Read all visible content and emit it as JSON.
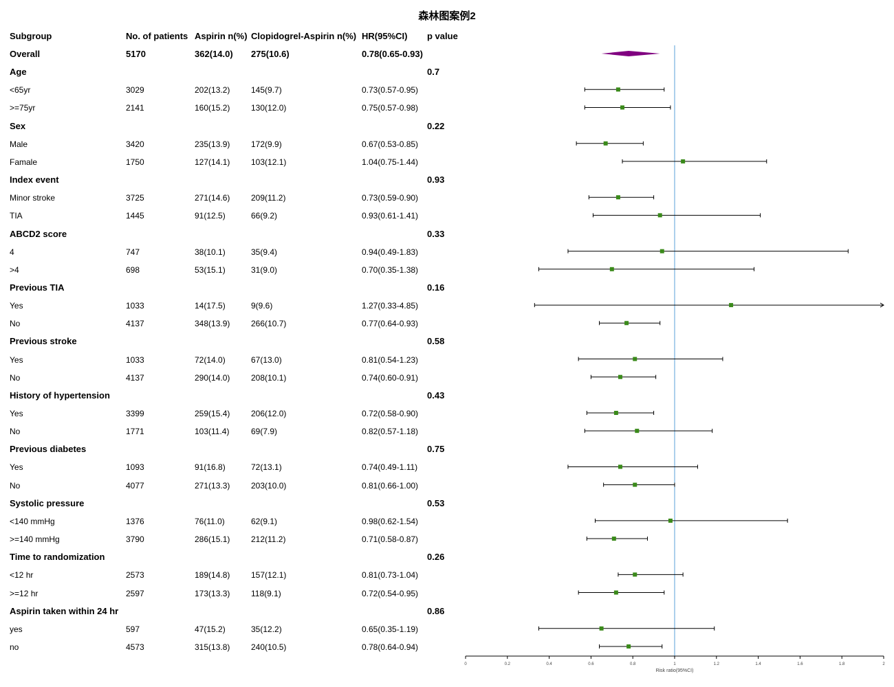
{
  "title": "森林图案例2",
  "headers": [
    "Subgroup",
    "No. of patients",
    "Aspirin n(%)",
    "Clopidogrel-Aspirin n(%)",
    "HR(95%CI)",
    "p value"
  ],
  "rows": [
    {
      "label": "Overall",
      "n": "5170",
      "asp": "362(14.0)",
      "clop": "275(10.6)",
      "hr": "0.78(0.65-0.93)",
      "p": "",
      "kind": "overall"
    },
    {
      "label": "Age",
      "n": "",
      "asp": "",
      "clop": "",
      "hr": "",
      "p": "0.7",
      "kind": "group"
    },
    {
      "label": "<65yr",
      "n": "3029",
      "asp": "202(13.2)",
      "clop": "145(9.7)",
      "hr": "0.73(0.57-0.95)",
      "p": "",
      "kind": "item"
    },
    {
      "label": ">=75yr",
      "n": "2141",
      "asp": "160(15.2)",
      "clop": "130(12.0)",
      "hr": "0.75(0.57-0.98)",
      "p": "",
      "kind": "item"
    },
    {
      "label": "Sex",
      "n": "",
      "asp": "",
      "clop": "",
      "hr": "",
      "p": "0.22",
      "kind": "group"
    },
    {
      "label": "Male",
      "n": "3420",
      "asp": "235(13.9)",
      "clop": "172(9.9)",
      "hr": "0.67(0.53-0.85)",
      "p": "",
      "kind": "item"
    },
    {
      "label": "Famale",
      "n": "1750",
      "asp": "127(14.1)",
      "clop": "103(12.1)",
      "hr": "1.04(0.75-1.44)",
      "p": "",
      "kind": "item"
    },
    {
      "label": "Index event",
      "n": "",
      "asp": "",
      "clop": "",
      "hr": "",
      "p": "0.93",
      "kind": "group"
    },
    {
      "label": "Minor stroke",
      "n": "3725",
      "asp": "271(14.6)",
      "clop": "209(11.2)",
      "hr": "0.73(0.59-0.90)",
      "p": "",
      "kind": "item"
    },
    {
      "label": "TIA",
      "n": "1445",
      "asp": "91(12.5)",
      "clop": "66(9.2)",
      "hr": "0.93(0.61-1.41)",
      "p": "",
      "kind": "item"
    },
    {
      "label": "ABCD2 score",
      "n": "",
      "asp": "",
      "clop": "",
      "hr": "",
      "p": "0.33",
      "kind": "group"
    },
    {
      "label": "4",
      "n": "747",
      "asp": "38(10.1)",
      "clop": "35(9.4)",
      "hr": "0.94(0.49-1.83)",
      "p": "",
      "kind": "item"
    },
    {
      "label": ">4",
      "n": "698",
      "asp": "53(15.1)",
      "clop": "31(9.0)",
      "hr": "0.70(0.35-1.38)",
      "p": "",
      "kind": "item"
    },
    {
      "label": "Previous TIA",
      "n": "",
      "asp": "",
      "clop": "",
      "hr": "",
      "p": "0.16",
      "kind": "group"
    },
    {
      "label": "Yes",
      "n": "1033",
      "asp": "14(17.5)",
      "clop": "9(9.6)",
      "hr": "1.27(0.33-4.85)",
      "p": "",
      "kind": "item"
    },
    {
      "label": "No",
      "n": "4137",
      "asp": "348(13.9)",
      "clop": "266(10.7)",
      "hr": "0.77(0.64-0.93)",
      "p": "",
      "kind": "item"
    },
    {
      "label": "Previous stroke",
      "n": "",
      "asp": "",
      "clop": "",
      "hr": "",
      "p": "0.58",
      "kind": "group"
    },
    {
      "label": "Yes",
      "n": "1033",
      "asp": "72(14.0)",
      "clop": "67(13.0)",
      "hr": "0.81(0.54-1.23)",
      "p": "",
      "kind": "item"
    },
    {
      "label": "No",
      "n": "4137",
      "asp": "290(14.0)",
      "clop": "208(10.1)",
      "hr": "0.74(0.60-0.91)",
      "p": "",
      "kind": "item"
    },
    {
      "label": "History of hypertension",
      "n": "",
      "asp": "",
      "clop": "",
      "hr": "",
      "p": "0.43",
      "kind": "group"
    },
    {
      "label": "Yes",
      "n": "3399",
      "asp": "259(15.4)",
      "clop": "206(12.0)",
      "hr": "0.72(0.58-0.90)",
      "p": "",
      "kind": "item"
    },
    {
      "label": "No",
      "n": "1771",
      "asp": "103(11.4)",
      "clop": "69(7.9)",
      "hr": "0.82(0.57-1.18)",
      "p": "",
      "kind": "item"
    },
    {
      "label": "Previous diabetes",
      "n": "",
      "asp": "",
      "clop": "",
      "hr": "",
      "p": "0.75",
      "kind": "group"
    },
    {
      "label": "Yes",
      "n": "1093",
      "asp": "91(16.8)",
      "clop": "72(13.1)",
      "hr": "0.74(0.49-1.11)",
      "p": "",
      "kind": "item"
    },
    {
      "label": "No",
      "n": "4077",
      "asp": "271(13.3)",
      "clop": "203(10.0)",
      "hr": "0.81(0.66-1.00)",
      "p": "",
      "kind": "item"
    },
    {
      "label": "Systolic pressure",
      "n": "",
      "asp": "",
      "clop": "",
      "hr": "",
      "p": "0.53",
      "kind": "group"
    },
    {
      "label": "<140 mmHg",
      "n": "1376",
      "asp": "76(11.0)",
      "clop": "62(9.1)",
      "hr": "0.98(0.62-1.54)",
      "p": "",
      "kind": "item"
    },
    {
      "label": ">=140 mmHg",
      "n": "3790",
      "asp": "286(15.1)",
      "clop": "212(11.2)",
      "hr": "0.71(0.58-0.87)",
      "p": "",
      "kind": "item"
    },
    {
      "label": "Time to randomization",
      "n": "",
      "asp": "",
      "clop": "",
      "hr": "",
      "p": "0.26",
      "kind": "group"
    },
    {
      "label": "<12 hr",
      "n": "2573",
      "asp": "189(14.8)",
      "clop": "157(12.1)",
      "hr": "0.81(0.73-1.04)",
      "p": "",
      "kind": "item"
    },
    {
      "label": ">=12 hr",
      "n": "2597",
      "asp": "173(13.3)",
      "clop": "118(9.1)",
      "hr": "0.72(0.54-0.95)",
      "p": "",
      "kind": "item"
    },
    {
      "label": "Aspirin taken within 24 hr",
      "n": "",
      "asp": "",
      "clop": "",
      "hr": "",
      "p": "0.86",
      "kind": "group"
    },
    {
      "label": "yes",
      "n": "597",
      "asp": "47(15.2)",
      "clop": "35(12.2)",
      "hr": "0.65(0.35-1.19)",
      "p": "",
      "kind": "item"
    },
    {
      "label": "no",
      "n": "4573",
      "asp": "315(13.8)",
      "clop": "240(10.5)",
      "hr": "0.78(0.64-0.94)",
      "p": "",
      "kind": "item"
    }
  ],
  "chart_data": {
    "type": "forest",
    "title": "森林图案例2",
    "xlabel": "Risk ratio(95%CI)",
    "xlim": [
      0,
      2
    ],
    "xticks": [
      "0",
      "0.2",
      "0.4",
      "0.6",
      "0.8",
      "1",
      "1.2",
      "1.4",
      "1.6",
      "1.8",
      "2"
    ],
    "reference_line": 1,
    "estimates": [
      {
        "row": 0,
        "est": 0.78,
        "lo": 0.65,
        "hi": 0.93,
        "shape": "diamond"
      },
      {
        "row": 2,
        "est": 0.73,
        "lo": 0.57,
        "hi": 0.95
      },
      {
        "row": 3,
        "est": 0.75,
        "lo": 0.57,
        "hi": 0.98
      },
      {
        "row": 5,
        "est": 0.67,
        "lo": 0.53,
        "hi": 0.85
      },
      {
        "row": 6,
        "est": 1.04,
        "lo": 0.75,
        "hi": 1.44
      },
      {
        "row": 8,
        "est": 0.73,
        "lo": 0.59,
        "hi": 0.9
      },
      {
        "row": 9,
        "est": 0.93,
        "lo": 0.61,
        "hi": 1.41
      },
      {
        "row": 11,
        "est": 0.94,
        "lo": 0.49,
        "hi": 1.83
      },
      {
        "row": 12,
        "est": 0.7,
        "lo": 0.35,
        "hi": 1.38
      },
      {
        "row": 14,
        "est": 1.27,
        "lo": 0.33,
        "hi": 4.85,
        "arrow_right": true
      },
      {
        "row": 15,
        "est": 0.77,
        "lo": 0.64,
        "hi": 0.93
      },
      {
        "row": 17,
        "est": 0.81,
        "lo": 0.54,
        "hi": 1.23
      },
      {
        "row": 18,
        "est": 0.74,
        "lo": 0.6,
        "hi": 0.91
      },
      {
        "row": 20,
        "est": 0.72,
        "lo": 0.58,
        "hi": 0.9
      },
      {
        "row": 21,
        "est": 0.82,
        "lo": 0.57,
        "hi": 1.18
      },
      {
        "row": 23,
        "est": 0.74,
        "lo": 0.49,
        "hi": 1.11
      },
      {
        "row": 24,
        "est": 0.81,
        "lo": 0.66,
        "hi": 1.0
      },
      {
        "row": 26,
        "est": 0.98,
        "lo": 0.62,
        "hi": 1.54
      },
      {
        "row": 27,
        "est": 0.71,
        "lo": 0.58,
        "hi": 0.87
      },
      {
        "row": 29,
        "est": 0.81,
        "lo": 0.73,
        "hi": 1.04
      },
      {
        "row": 30,
        "est": 0.72,
        "lo": 0.54,
        "hi": 0.95
      },
      {
        "row": 32,
        "est": 0.65,
        "lo": 0.35,
        "hi": 1.19
      },
      {
        "row": 33,
        "est": 0.78,
        "lo": 0.64,
        "hi": 0.94
      }
    ],
    "colors": {
      "point": "#3a8a1a",
      "overall": "#800080",
      "reference": "#5aa0d8",
      "ci": "#000000"
    }
  }
}
